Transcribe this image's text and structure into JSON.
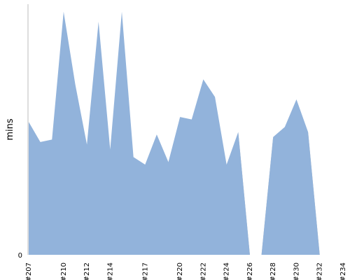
{
  "chart_data": {
    "type": "area",
    "ylabel": "mins",
    "xlabel": "",
    "ylim": [
      0,
      100
    ],
    "y_ticks": [
      0
    ],
    "x": [
      "#207",
      "#208",
      "#209",
      "#210",
      "#211",
      "#212",
      "#213",
      "#214",
      "#215",
      "#216",
      "#217",
      "#218",
      "#219",
      "#220",
      "#221",
      "#222",
      "#223",
      "#224",
      "#225",
      "#226",
      "#227",
      "#228",
      "#229",
      "#230",
      "#231",
      "#232",
      "#233",
      "#234"
    ],
    "x_tick_labels": [
      "#207",
      "#210",
      "#212",
      "#214",
      "#217",
      "#220",
      "#222",
      "#224",
      "#226",
      "#228",
      "#230",
      "#232",
      "#234"
    ],
    "series": [
      {
        "color": "#92b3db",
        "values": [
          53,
          45,
          46,
          97,
          68,
          44,
          93,
          42,
          97,
          39,
          36,
          48,
          37,
          55,
          54,
          70,
          63,
          36,
          49,
          0,
          0,
          47,
          51,
          62,
          49,
          0,
          0,
          0
        ]
      }
    ],
    "gap_color": "#b4b4b4",
    "grid": false,
    "legend": "none"
  }
}
